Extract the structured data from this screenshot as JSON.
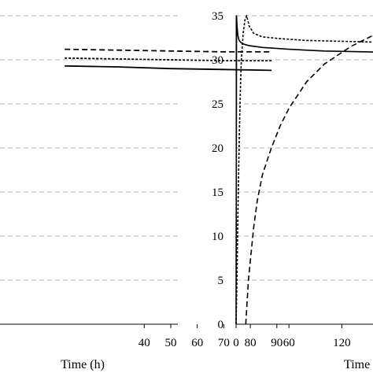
{
  "chart_data": [
    {
      "type": "line",
      "xlabel": "Time (h)",
      "x_ticks": [
        40,
        50,
        60,
        70,
        80,
        90
      ],
      "xlim": [
        10,
        90
      ],
      "ylim": [
        0,
        35
      ],
      "y_ticks": [
        0,
        5,
        10,
        15,
        20,
        25,
        30,
        35
      ],
      "y_tick_labels_visible": false,
      "grid": "horizontal dashed",
      "series": [
        {
          "style": "dashed",
          "x": [
            10,
            30,
            50,
            70,
            88
          ],
          "y": [
            31.2,
            31.1,
            31.0,
            30.9,
            30.9
          ]
        },
        {
          "style": "dotted",
          "x": [
            10,
            30,
            50,
            70,
            88
          ],
          "y": [
            30.2,
            30.1,
            30.0,
            29.9,
            29.9
          ]
        },
        {
          "style": "solid",
          "x": [
            10,
            30,
            50,
            70,
            88
          ],
          "y": [
            29.3,
            29.2,
            29.0,
            28.9,
            28.8
          ]
        }
      ]
    },
    {
      "type": "line",
      "xlabel": "Time",
      "x_ticks": [
        0,
        60,
        120
      ],
      "xlim": [
        0,
        200
      ],
      "ylim": [
        0,
        35
      ],
      "y_ticks": [
        0,
        5,
        10,
        15,
        20,
        25,
        30,
        35
      ],
      "grid": "horizontal dashed",
      "series": [
        {
          "style": "solid",
          "x": [
            0,
            0.5,
            1,
            2,
            3,
            5,
            8,
            15,
            30,
            60,
            100,
            150,
            200
          ],
          "y": [
            0,
            35,
            34,
            32.8,
            32.3,
            32.0,
            31.8,
            31.6,
            31.4,
            31.2,
            31.0,
            30.9,
            30.8
          ]
        },
        {
          "style": "short-dashed",
          "x": [
            0,
            1,
            2,
            3,
            4,
            5,
            6,
            8,
            10,
            12,
            15,
            20,
            30,
            50,
            80,
            120,
            160,
            200
          ],
          "y": [
            0,
            5,
            12,
            18,
            23,
            27,
            30,
            33,
            34.5,
            35,
            33.8,
            33.0,
            32.6,
            32.4,
            32.2,
            32.1,
            32.0,
            32.0
          ]
        },
        {
          "style": "long-dashed",
          "x": [
            11,
            14,
            17,
            20,
            24,
            30,
            40,
            50,
            60,
            80,
            100,
            130,
            160,
            200
          ],
          "y": [
            0,
            5,
            8,
            11,
            14,
            17,
            20,
            22.5,
            24.5,
            27.5,
            29.5,
            31.5,
            33,
            34.2
          ]
        }
      ]
    }
  ]
}
